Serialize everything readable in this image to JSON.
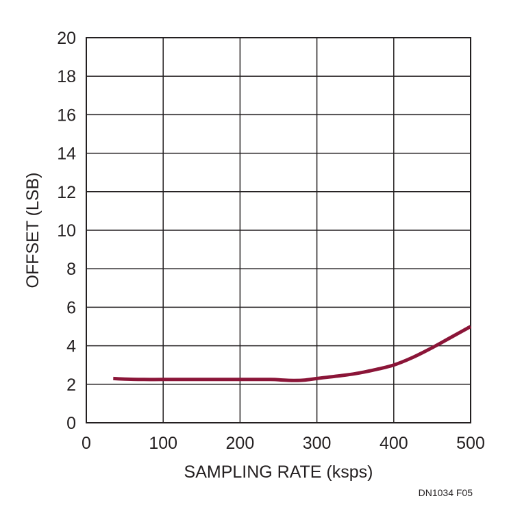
{
  "chart_data": {
    "type": "line",
    "xlabel": "SAMPLING RATE (ksps)",
    "ylabel": "OFFSET (LSB)",
    "xlim": [
      0,
      500
    ],
    "ylim": [
      0,
      20
    ],
    "xticks": [
      0,
      100,
      200,
      300,
      400,
      500
    ],
    "yticks": [
      0,
      2,
      4,
      6,
      8,
      10,
      12,
      14,
      16,
      18,
      20
    ],
    "grid": true,
    "series": [
      {
        "color": "#8b1538",
        "x": [
          35,
          50,
          75,
          100,
          150,
          200,
          240,
          255,
          270,
          285,
          300,
          325,
          350,
          375,
          400,
          425,
          450,
          475,
          500
        ],
        "y": [
          2.3,
          2.27,
          2.25,
          2.25,
          2.25,
          2.25,
          2.25,
          2.22,
          2.2,
          2.22,
          2.3,
          2.42,
          2.55,
          2.75,
          3.0,
          3.4,
          3.9,
          4.45,
          5.0
        ]
      }
    ],
    "annotations": [
      "DN1034 F05"
    ]
  }
}
